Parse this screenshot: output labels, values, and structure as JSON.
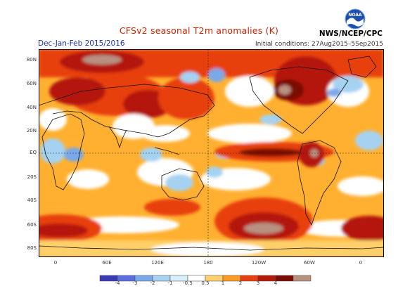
{
  "header": {
    "title": "CFSv2 seasonal T2m anomalies (K)",
    "period": "Dec-Jan-Feb 2015/2016",
    "initial_conditions": "Initial conditions: 27Aug2015–5Sep2015",
    "agency": "NWS/NCEP/CPC",
    "logo_text": "NOAA"
  },
  "map": {
    "lat_labels": [
      "80N",
      "60N",
      "40N",
      "20N",
      "EQ",
      "20S",
      "40S",
      "60S",
      "80S"
    ],
    "lon_labels": [
      "0",
      "60E",
      "120E",
      "180",
      "120W",
      "60W",
      "0"
    ],
    "show_graticule_equator_and_dateline": true
  },
  "colorbar": {
    "tick_labels": [
      "-4",
      "-3",
      "-2",
      "-1",
      "-0.5",
      "0.5",
      "1",
      "2",
      "3",
      "4"
    ],
    "colors": [
      "#3a3ab8",
      "#5a6ee0",
      "#7aa8e8",
      "#a6d2f2",
      "#d8eefa",
      "#ffffff",
      "#ffd06a",
      "#ff9a20",
      "#e84010",
      "#b41808",
      "#7a0c04",
      "#b89080"
    ]
  }
}
